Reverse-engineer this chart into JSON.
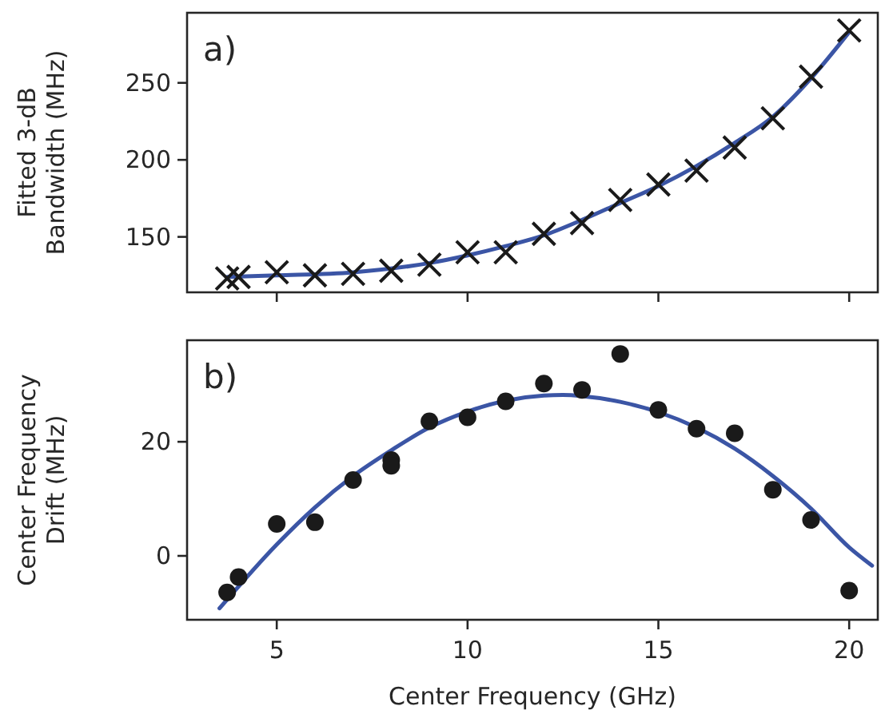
{
  "chart_data": [
    {
      "type": "scatter",
      "ylabel": "Fitted 3-dB\nBandwidth (MHz)",
      "annotations": [
        "a)"
      ],
      "xlim": [
        2.65,
        20.75
      ],
      "xticks": [
        5,
        10,
        15,
        20
      ],
      "ylim": [
        114,
        295.5
      ],
      "yticks": [
        150,
        200,
        250
      ],
      "tick_labels": "y",
      "series": [
        {
          "type": "line",
          "color": "#3b55a5",
          "x": [
            3.7,
            5,
            7,
            9,
            10,
            11,
            12,
            13,
            14,
            15,
            16,
            17,
            18,
            19,
            20
          ],
          "values": [
            124,
            125,
            127,
            133,
            138,
            144,
            151,
            161,
            172,
            183,
            196,
            211,
            228,
            253,
            283
          ]
        },
        {
          "color": "#1a1a1a",
          "marker": "cross",
          "x": [
            3.7,
            4,
            5,
            6,
            7,
            8,
            9,
            10,
            11,
            12,
            13,
            14,
            15,
            16,
            17,
            18,
            19,
            20
          ],
          "values": [
            123,
            124,
            127,
            125,
            126,
            128,
            132,
            140,
            140,
            152,
            159,
            174,
            184,
            193,
            208,
            227,
            254,
            284
          ]
        }
      ]
    },
    {
      "type": "scatter",
      "xlabel": "Center Frequency (GHz)",
      "ylabel": "Center Frequency\nDrift (MHz)",
      "annotations": [
        "b)"
      ],
      "xlim": [
        2.65,
        20.75
      ],
      "xticks": [
        5,
        10,
        15,
        20
      ],
      "ylim": [
        -11.2,
        37.8
      ],
      "yticks": [
        0,
        20
      ],
      "series": [
        {
          "type": "line",
          "color": "#3b55a5",
          "x": [
            3.5,
            5,
            6,
            7,
            8,
            9,
            10,
            11,
            12,
            12.5,
            13,
            14,
            15,
            16,
            17,
            18,
            19,
            20,
            20.6
          ],
          "values": [
            -9.2,
            2,
            8.5,
            14,
            18.5,
            22.5,
            25.3,
            27.2,
            28.1,
            28.2,
            28,
            27,
            25.2,
            22.5,
            18.8,
            14,
            8.3,
            1.5,
            -1.7
          ]
        },
        {
          "color": "#1a1a1a",
          "marker": "circle",
          "x": [
            3.7,
            4,
            5,
            6,
            7,
            8,
            8,
            9,
            10,
            11,
            12,
            13,
            14,
            15,
            16,
            17,
            18,
            19,
            20
          ],
          "values": [
            -6.4,
            -3.7,
            5.6,
            5.9,
            13.3,
            16.8,
            15.8,
            23.6,
            24.3,
            27.1,
            30.2,
            29.1,
            35.4,
            25.6,
            22.3,
            21.5,
            11.6,
            6.3,
            -6.1
          ]
        }
      ]
    }
  ]
}
